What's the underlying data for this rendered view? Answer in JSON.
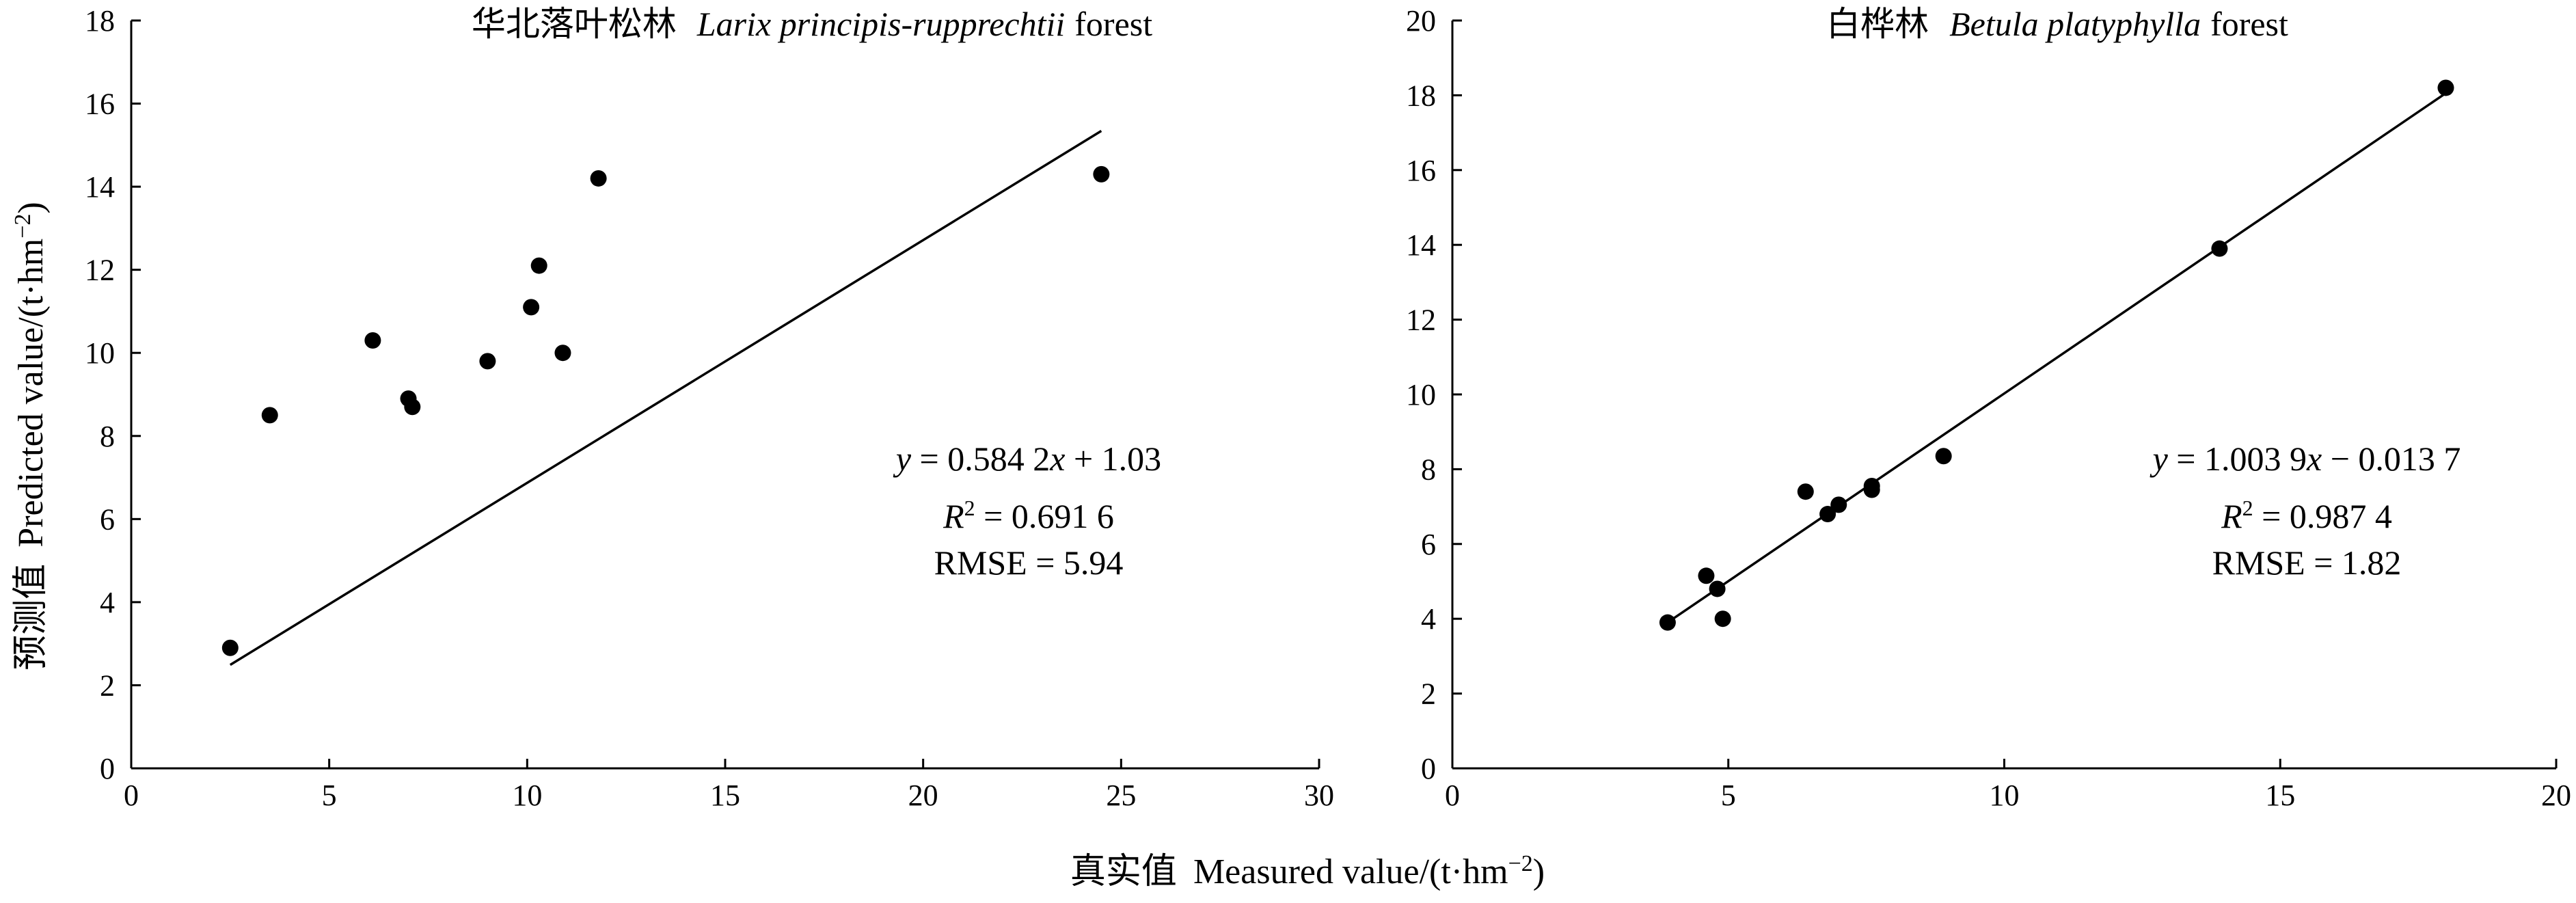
{
  "figure": {
    "shared_xlabel_cn": "真实值",
    "shared_xlabel_en": "Measured value/(t·hm",
    "shared_xlabel_unit_sup": "−2",
    "shared_xlabel_close": ")",
    "shared_ylabel_cn": "预测值",
    "shared_ylabel_en": "Predicted value/(t·hm",
    "shared_ylabel_unit_sup": "−2",
    "shared_ylabel_close": ")"
  },
  "chart_data": [
    {
      "type": "scatter",
      "title_cn": "华北落叶松林",
      "title_latin": "Larix principis-rupprechtii",
      "title_suffix": "forest",
      "xlim": [
        0,
        30
      ],
      "ylim": [
        0,
        18
      ],
      "xticks": [
        0,
        5,
        10,
        15,
        20,
        25,
        30
      ],
      "yticks": [
        0,
        2,
        4,
        6,
        8,
        10,
        12,
        14,
        16,
        18
      ],
      "grid": false,
      "points": [
        {
          "x": 2.5,
          "y": 2.9
        },
        {
          "x": 3.5,
          "y": 8.5
        },
        {
          "x": 6.1,
          "y": 10.3
        },
        {
          "x": 7.0,
          "y": 8.9
        },
        {
          "x": 7.1,
          "y": 8.7
        },
        {
          "x": 9.0,
          "y": 9.8
        },
        {
          "x": 10.1,
          "y": 11.1
        },
        {
          "x": 10.3,
          "y": 12.1
        },
        {
          "x": 10.9,
          "y": 10.0
        },
        {
          "x": 11.8,
          "y": 14.2
        },
        {
          "x": 24.5,
          "y": 14.3
        }
      ],
      "fit": {
        "slope": 0.5842,
        "intercept": 1.03,
        "x_range": [
          2.5,
          24.5
        ]
      },
      "equation": {
        "y_var": "y",
        "eq_mid": " = 0.584 2",
        "x_var": "x",
        "eq_tail": " + 1.03"
      },
      "r2": {
        "r": "R",
        "sup": "2",
        "value": " = 0.691 6"
      },
      "rmse": "RMSE = 5.94"
    },
    {
      "type": "scatter",
      "title_cn": "白桦林",
      "title_latin": "Betula platyphylla",
      "title_suffix": "forest",
      "xlim": [
        0,
        20
      ],
      "ylim": [
        0,
        20
      ],
      "xticks": [
        0,
        5,
        10,
        15,
        20
      ],
      "yticks": [
        0,
        2,
        4,
        6,
        8,
        10,
        12,
        14,
        16,
        18,
        20
      ],
      "grid": false,
      "points": [
        {
          "x": 3.9,
          "y": 3.9
        },
        {
          "x": 4.6,
          "y": 5.15
        },
        {
          "x": 4.8,
          "y": 4.8
        },
        {
          "x": 4.9,
          "y": 4.0
        },
        {
          "x": 6.4,
          "y": 7.4
        },
        {
          "x": 6.8,
          "y": 6.8
        },
        {
          "x": 7.0,
          "y": 7.05
        },
        {
          "x": 7.6,
          "y": 7.45
        },
        {
          "x": 7.6,
          "y": 7.55
        },
        {
          "x": 8.9,
          "y": 8.35
        },
        {
          "x": 13.9,
          "y": 13.9
        },
        {
          "x": 18.0,
          "y": 18.2
        }
      ],
      "fit": {
        "slope": 1.0039,
        "intercept": -0.0137,
        "x_range": [
          3.9,
          18.0
        ]
      },
      "equation": {
        "y_var": "y",
        "eq_mid": " = 1.003 9",
        "x_var": "x",
        "eq_tail": " − 0.013 7"
      },
      "r2": {
        "r": "R",
        "sup": "2",
        "value": " = 0.987 4"
      },
      "rmse": "RMSE = 1.82"
    }
  ]
}
